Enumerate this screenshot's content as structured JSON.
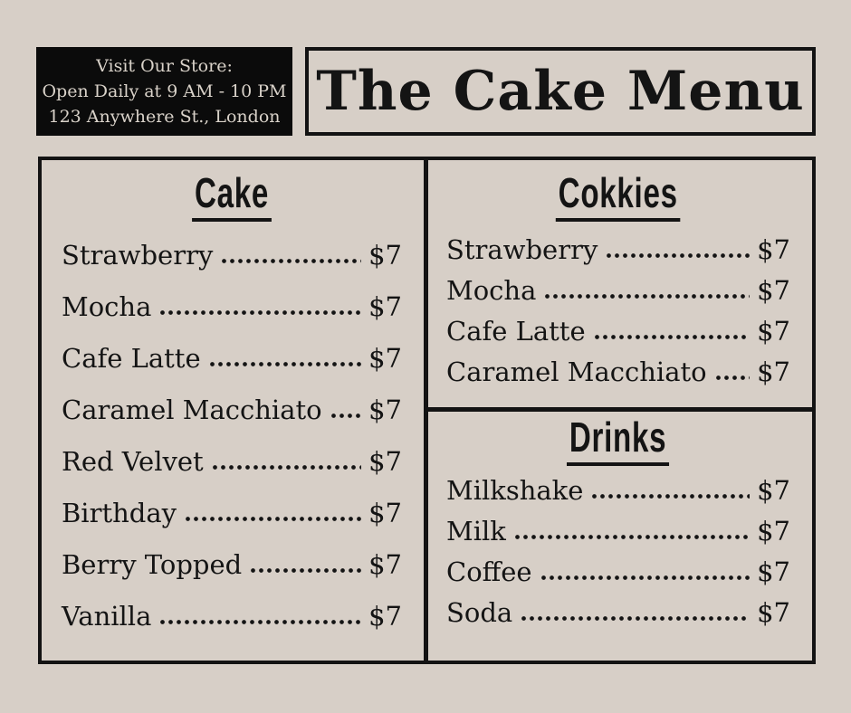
{
  "canvas": {
    "bg_color": "#d7cfc7",
    "ink_color": "#141414",
    "header_panel_color": "#0b0b0b",
    "header_text_color": "#d9d2c9"
  },
  "header": {
    "store_info_lines": [
      "Visit Our Store:",
      "Open Daily at 9 AM - 10 PM",
      "123 Anywhere St., London"
    ],
    "title": "The Cake Menu"
  },
  "menu": {
    "sections": [
      {
        "title": "Cake",
        "items": [
          {
            "name": "Strawberry",
            "price": "$7"
          },
          {
            "name": "Mocha",
            "price": "$7"
          },
          {
            "name": "Cafe Latte",
            "price": "$7"
          },
          {
            "name": "Caramel Macchiato",
            "price": "$7"
          },
          {
            "name": "Red Velvet",
            "price": "$7"
          },
          {
            "name": "Birthday",
            "price": "$7"
          },
          {
            "name": "Berry Topped",
            "price": "$7"
          },
          {
            "name": "Vanilla",
            "price": "$7"
          }
        ]
      },
      {
        "title": "Cokkies",
        "items": [
          {
            "name": "Strawberry",
            "price": "$7"
          },
          {
            "name": "Mocha",
            "price": "$7"
          },
          {
            "name": "Cafe Latte",
            "price": "$7"
          },
          {
            "name": "Caramel Macchiato",
            "price": "$7"
          }
        ]
      },
      {
        "title": "Drinks",
        "items": [
          {
            "name": "Milkshake",
            "price": "$7"
          },
          {
            "name": "Milk",
            "price": "$7"
          },
          {
            "name": "Coffee",
            "price": "$7"
          },
          {
            "name": "Soda",
            "price": "$7"
          }
        ]
      }
    ]
  }
}
